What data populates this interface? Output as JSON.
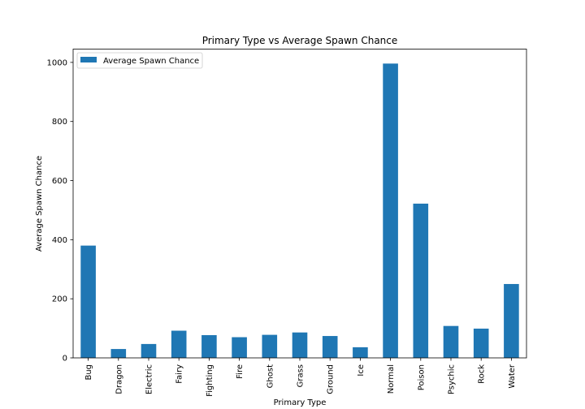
{
  "chart_data": {
    "type": "bar",
    "title": "Primary Type vs Average Spawn Chance",
    "xlabel": "Primary Type",
    "ylabel": "Average Spawn Chance",
    "categories": [
      "Bug",
      "Dragon",
      "Electric",
      "Fairy",
      "Fighting",
      "Fire",
      "Ghost",
      "Grass",
      "Ground",
      "Ice",
      "Normal",
      "Poison",
      "Psychic",
      "Rock",
      "Water"
    ],
    "series": [
      {
        "name": "Average Spawn Chance",
        "values": [
          380,
          30,
          47,
          92,
          77,
          70,
          78,
          86,
          74,
          36,
          996,
          522,
          108,
          99,
          250
        ],
        "color": "#1f77b4"
      }
    ],
    "ylim": [
      0,
      1045
    ],
    "yticks": [
      0,
      200,
      400,
      600,
      800,
      1000
    ],
    "legend": {
      "placement": "top-left",
      "entries": [
        "Average Spawn Chance"
      ]
    },
    "grid": false
  }
}
